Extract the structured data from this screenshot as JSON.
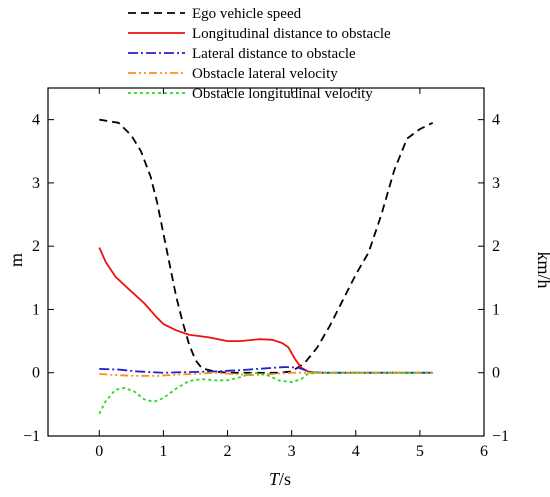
{
  "chart_data": {
    "type": "line",
    "xlabel": "T",
    "xlabel_suffix": "/s",
    "ylabel_left": "m",
    "ylabel_right": "km/h",
    "xlim": [
      -0.8,
      6
    ],
    "ylim": [
      -1,
      4.5
    ],
    "x_ticks": [
      "0",
      "1",
      "2",
      "3",
      "4",
      "5",
      "6"
    ],
    "y_ticks_left": [
      "−1",
      "0",
      "1",
      "2",
      "3",
      "4"
    ],
    "y_ticks_right": [
      "−1",
      "0",
      "1",
      "2",
      "3",
      "4"
    ],
    "legend_position": "top",
    "series": [
      {
        "name": "Ego vehicle speed",
        "color": "#000000",
        "dash": "8,5",
        "points": [
          [
            0,
            4.0
          ],
          [
            0.3,
            3.95
          ],
          [
            0.5,
            3.75
          ],
          [
            0.65,
            3.5
          ],
          [
            0.8,
            3.1
          ],
          [
            0.9,
            2.7
          ],
          [
            1.0,
            2.2
          ],
          [
            1.1,
            1.7
          ],
          [
            1.2,
            1.2
          ],
          [
            1.3,
            0.8
          ],
          [
            1.4,
            0.45
          ],
          [
            1.5,
            0.2
          ],
          [
            1.6,
            0.07
          ],
          [
            1.8,
            0.02
          ],
          [
            2.0,
            0.0
          ],
          [
            2.4,
            0.0
          ],
          [
            2.8,
            0.0
          ],
          [
            3.0,
            0.02
          ],
          [
            3.2,
            0.15
          ],
          [
            3.4,
            0.4
          ],
          [
            3.6,
            0.75
          ],
          [
            3.8,
            1.15
          ],
          [
            4.0,
            1.55
          ],
          [
            4.2,
            1.9
          ],
          [
            4.4,
            2.5
          ],
          [
            4.6,
            3.2
          ],
          [
            4.8,
            3.7
          ],
          [
            5.0,
            3.85
          ],
          [
            5.2,
            3.95
          ]
        ]
      },
      {
        "name": "Longitudinal distance to obstacle",
        "color": "#ee1111",
        "dash": "",
        "points": [
          [
            0,
            1.98
          ],
          [
            0.1,
            1.75
          ],
          [
            0.25,
            1.52
          ],
          [
            0.45,
            1.33
          ],
          [
            0.7,
            1.1
          ],
          [
            0.9,
            0.87
          ],
          [
            1.0,
            0.77
          ],
          [
            1.2,
            0.67
          ],
          [
            1.4,
            0.6
          ],
          [
            1.7,
            0.56
          ],
          [
            2.0,
            0.5
          ],
          [
            2.2,
            0.5
          ],
          [
            2.5,
            0.53
          ],
          [
            2.7,
            0.52
          ],
          [
            2.85,
            0.47
          ],
          [
            2.95,
            0.4
          ],
          [
            3.05,
            0.22
          ],
          [
            3.15,
            0.08
          ],
          [
            3.25,
            0.02
          ],
          [
            3.4,
            0.0
          ],
          [
            4.0,
            0.0
          ],
          [
            5.2,
            0.0
          ]
        ]
      },
      {
        "name": "Lateral distance to obstacle",
        "color": "#2222cc",
        "dash": "10,3,2,3",
        "points": [
          [
            0,
            0.06
          ],
          [
            0.3,
            0.05
          ],
          [
            0.6,
            0.02
          ],
          [
            1.0,
            0.0
          ],
          [
            1.4,
            0.01
          ],
          [
            1.8,
            0.02
          ],
          [
            2.2,
            0.04
          ],
          [
            2.6,
            0.07
          ],
          [
            2.9,
            0.09
          ],
          [
            3.1,
            0.08
          ],
          [
            3.3,
            0.01
          ],
          [
            3.5,
            0.0
          ],
          [
            5.2,
            0.0
          ]
        ]
      },
      {
        "name": "Obstacle lateral velocity",
        "color": "#ff8c1a",
        "dash": "8,3,2,3,2,3",
        "points": [
          [
            0,
            -0.02
          ],
          [
            0.3,
            -0.04
          ],
          [
            0.6,
            -0.05
          ],
          [
            0.9,
            -0.05
          ],
          [
            1.2,
            -0.03
          ],
          [
            1.5,
            -0.02
          ],
          [
            1.8,
            0.0
          ],
          [
            2.1,
            -0.02
          ],
          [
            2.4,
            -0.04
          ],
          [
            2.7,
            -0.02
          ],
          [
            3.0,
            0.0
          ],
          [
            3.3,
            0.0
          ],
          [
            5.2,
            0.0
          ]
        ]
      },
      {
        "name": "Obstacle longitudinal velocity",
        "color": "#22dd22",
        "dash": "3,3",
        "points": [
          [
            0,
            -0.65
          ],
          [
            0.1,
            -0.45
          ],
          [
            0.25,
            -0.27
          ],
          [
            0.4,
            -0.24
          ],
          [
            0.55,
            -0.3
          ],
          [
            0.7,
            -0.42
          ],
          [
            0.85,
            -0.46
          ],
          [
            1.0,
            -0.4
          ],
          [
            1.2,
            -0.25
          ],
          [
            1.4,
            -0.13
          ],
          [
            1.6,
            -0.1
          ],
          [
            1.8,
            -0.12
          ],
          [
            2.0,
            -0.12
          ],
          [
            2.2,
            -0.07
          ],
          [
            2.4,
            0.0
          ],
          [
            2.6,
            -0.03
          ],
          [
            2.8,
            -0.12
          ],
          [
            3.0,
            -0.15
          ],
          [
            3.15,
            -0.1
          ],
          [
            3.25,
            -0.02
          ],
          [
            3.4,
            0.0
          ],
          [
            5.2,
            0.0
          ]
        ]
      }
    ]
  }
}
